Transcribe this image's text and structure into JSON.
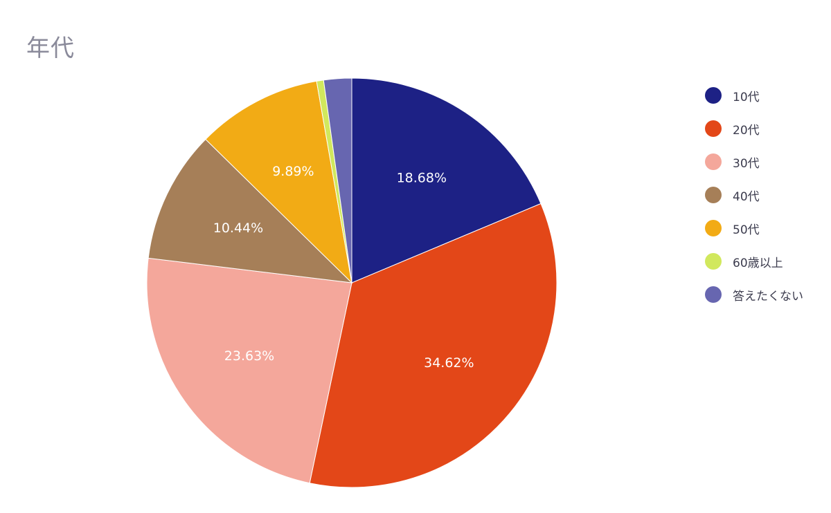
{
  "chart_data": {
    "type": "pie",
    "title": "年代",
    "start_angle_deg": 0,
    "direction": "clockwise",
    "legend_position": "right",
    "slices": [
      {
        "label": "10代",
        "value": 18.68,
        "display": "18.68%",
        "color": "#1d2185"
      },
      {
        "label": "20代",
        "value": 34.62,
        "display": "34.62%",
        "color": "#e34718"
      },
      {
        "label": "30代",
        "value": 23.63,
        "display": "23.63%",
        "color": "#f4a79b"
      },
      {
        "label": "40代",
        "value": 10.44,
        "display": "10.44%",
        "color": "#a67f58"
      },
      {
        "label": "50代",
        "value": 9.89,
        "display": "9.89%",
        "color": "#f2ab15"
      },
      {
        "label": "60歳以上",
        "value": 0.55,
        "display": "",
        "color": "#d1e85d"
      },
      {
        "label": "答えたくない",
        "value": 2.2,
        "display": "",
        "color": "#6766b0"
      }
    ]
  }
}
